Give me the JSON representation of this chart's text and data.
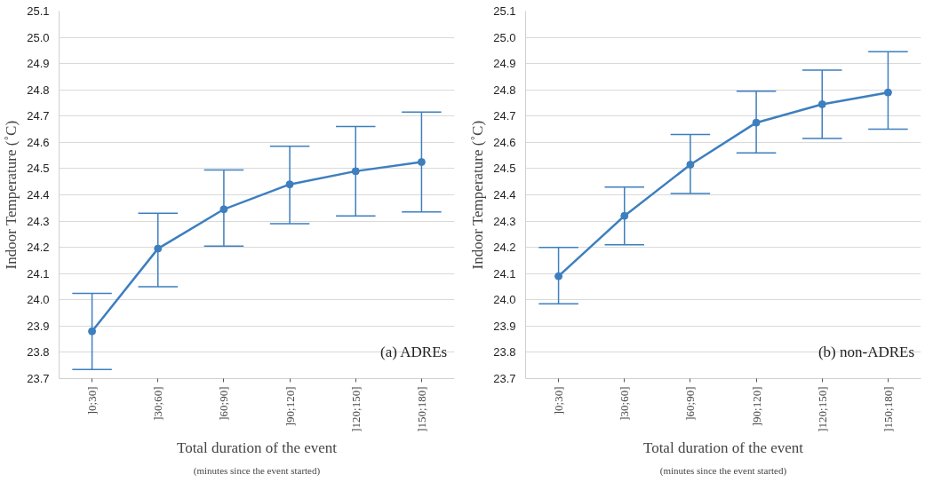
{
  "chart_data": [
    {
      "type": "line",
      "categories": [
        "]0;30]",
        "]30;60]",
        "]60;90]",
        "]90;120]",
        "]120;150]",
        "]150;180]"
      ],
      "color": "#3d7fbf",
      "values": [
        23.88,
        24.195,
        24.345,
        24.44,
        24.49,
        24.525
      ],
      "errors": [
        [
          23.735,
          24.025
        ],
        [
          24.05,
          24.33
        ],
        [
          24.205,
          24.495
        ],
        [
          24.29,
          24.585
        ],
        [
          24.32,
          24.66
        ],
        [
          24.335,
          24.715
        ]
      ],
      "xlabel": "Total duration of the event",
      "ylabel": "Indoor Temperature (˚C)",
      "annotations": [
        "(a) ADREs",
        "(minutes since the event started)"
      ],
      "ylim": [
        23.7,
        25.1
      ],
      "yticks": [
        {
          "value": 23.7,
          "label": "23.7"
        },
        {
          "value": 23.8,
          "label": "23.8"
        },
        {
          "value": 23.9,
          "label": "23.9"
        },
        {
          "value": 24.0,
          "label": "24.0"
        },
        {
          "value": 24.1,
          "label": "24.1"
        },
        {
          "value": 24.2,
          "label": "24.2"
        },
        {
          "value": 24.3,
          "label": "24.3"
        },
        {
          "value": 24.4,
          "label": "24.4"
        },
        {
          "value": 24.5,
          "label": "24.5"
        },
        {
          "value": 24.6,
          "label": "24.6"
        },
        {
          "value": 24.7,
          "label": "24.7"
        },
        {
          "value": 24.8,
          "label": "24.8"
        },
        {
          "value": 24.9,
          "label": "24.9"
        },
        {
          "value": 25.0,
          "label": "25.0"
        },
        {
          "value": 25.1,
          "label": "25.1"
        }
      ],
      "grid": "y",
      "marker": "circle",
      "line_style": "solid"
    },
    {
      "type": "line",
      "categories": [
        "]0;30]",
        "]30;60]",
        "]60;90]",
        "]90;120]",
        "]120;150]",
        "]150;180]"
      ],
      "color": "#3d7fbf",
      "values": [
        24.09,
        24.32,
        24.515,
        24.675,
        24.745,
        24.79
      ],
      "errors": [
        [
          23.985,
          24.2
        ],
        [
          24.21,
          24.43
        ],
        [
          24.405,
          24.63
        ],
        [
          24.56,
          24.795
        ],
        [
          24.615,
          24.875
        ],
        [
          24.65,
          24.945
        ]
      ],
      "xlabel": "Total duration of the event",
      "ylabel": "Indoor Temperature (˚C)",
      "annotations": [
        "(b) non-ADREs",
        "(minutes since the event started)"
      ],
      "ylim": [
        23.7,
        25.1
      ],
      "yticks": [
        {
          "value": 23.7,
          "label": "23.7"
        },
        {
          "value": 23.8,
          "label": "23.8"
        },
        {
          "value": 23.9,
          "label": "23.9"
        },
        {
          "value": 24.0,
          "label": "24.0"
        },
        {
          "value": 24.1,
          "label": "24.1"
        },
        {
          "value": 24.2,
          "label": "24.2"
        },
        {
          "value": 24.3,
          "label": "24.3"
        },
        {
          "value": 24.4,
          "label": "24.4"
        },
        {
          "value": 24.5,
          "label": "24.5"
        },
        {
          "value": 24.6,
          "label": "24.6"
        },
        {
          "value": 24.7,
          "label": "24.7"
        },
        {
          "value": 24.8,
          "label": "24.8"
        },
        {
          "value": 24.9,
          "label": "24.9"
        },
        {
          "value": 25.0,
          "label": "25.0"
        },
        {
          "value": 25.1,
          "label": "25.1"
        }
      ],
      "grid": "y",
      "marker": "circle",
      "line_style": "solid"
    }
  ]
}
